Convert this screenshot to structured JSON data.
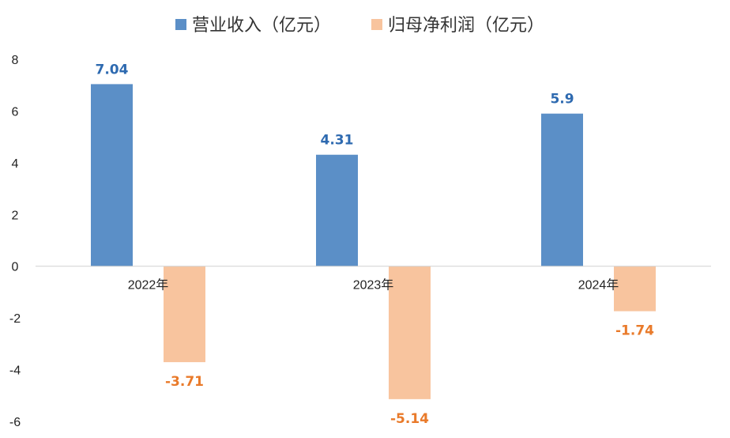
{
  "chart_data": {
    "type": "bar",
    "categories": [
      "2022年",
      "2023年",
      "2024年"
    ],
    "series": [
      {
        "name": "营业收入（亿元）",
        "values": [
          7.04,
          4.31,
          5.9
        ],
        "labels": [
          "7.04",
          "4.31",
          "5.9"
        ],
        "color": "#5b8fc7",
        "label_color": "#2e6ab0"
      },
      {
        "name": "归母净利润（亿元）",
        "values": [
          -3.71,
          -5.14,
          -1.74
        ],
        "labels": [
          "-3.71",
          "-5.14",
          "-1.74"
        ],
        "color": "#f8c49e",
        "label_color": "#e97a2a"
      }
    ],
    "ylim": [
      -6,
      8
    ],
    "yticks": [
      "8",
      "6",
      "4",
      "2",
      "0",
      "-2",
      "-4",
      "-6"
    ],
    "legend_position": "top",
    "grid": false,
    "axis_color": "#d0d0d0"
  }
}
